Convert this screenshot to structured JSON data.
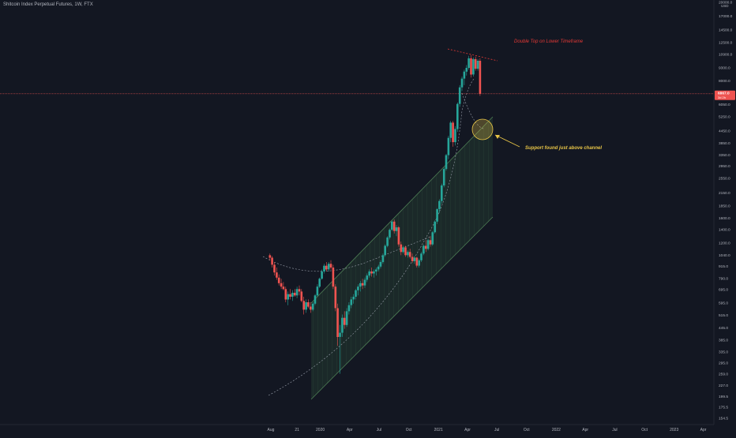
{
  "header": {
    "symbol": "Shitcoin Index Perpetual Futures, 1W, FTX"
  },
  "colors": {
    "background": "#131722",
    "up": "#26a69a",
    "down": "#ef5350",
    "axis_text": "#b2b5be",
    "channel": "#3d5a40",
    "annotation_red": "#e53935",
    "annotation_yellow": "#e8c547",
    "price_tag": "#ef5350"
  },
  "chart_data": {
    "type": "candlestick",
    "scale": "log",
    "ylim": [
      140,
      22000
    ],
    "currency_label": "USD",
    "y_ticks": [
      20000.0,
      17000.0,
      14500.0,
      12500.0,
      10900.0,
      9300.0,
      8000.0,
      6050.0,
      5250.0,
      4450.0,
      3850.0,
      3350.0,
      2950.0,
      2550.0,
      2150.0,
      1850.0,
      1600.0,
      1400.0,
      1200.0,
      1040.0,
      915.0,
      790.0,
      695.0,
      595.0,
      515.0,
      445.0,
      385.0,
      335.0,
      295.0,
      259.0,
      227.0,
      199.5,
      175.5,
      154.5
    ],
    "x_ticks": [
      {
        "label": "Aug",
        "date": "2019-08-01"
      },
      {
        "label": "21",
        "date": "2019-10-21"
      },
      {
        "label": "2020",
        "date": "2020-01-01"
      },
      {
        "label": "Apr",
        "date": "2020-04-01"
      },
      {
        "label": "Jul",
        "date": "2020-07-01"
      },
      {
        "label": "Oct",
        "date": "2020-10-01"
      },
      {
        "label": "2021",
        "date": "2021-01-01"
      },
      {
        "label": "Apr",
        "date": "2021-04-01"
      },
      {
        "label": "Jul",
        "date": "2021-07-01"
      },
      {
        "label": "Oct",
        "date": "2021-10-01"
      },
      {
        "label": "2022",
        "date": "2022-01-01"
      },
      {
        "label": "Apr",
        "date": "2022-04-01"
      },
      {
        "label": "Jul",
        "date": "2022-07-01"
      },
      {
        "label": "Oct",
        "date": "2022-10-01"
      },
      {
        "label": "2023",
        "date": "2023-01-01"
      },
      {
        "label": "Apr",
        "date": "2023-04-01"
      }
    ],
    "current_price": {
      "value": 6867.0,
      "label": "6867.0",
      "countdown": "3d 2h"
    },
    "candles": [
      {
        "date": "2019-07-29",
        "o": 1040,
        "h": 1060,
        "l": 980,
        "c": 1010
      },
      {
        "date": "2019-08-05",
        "o": 1010,
        "h": 1030,
        "l": 900,
        "c": 930
      },
      {
        "date": "2019-08-12",
        "o": 930,
        "h": 960,
        "l": 820,
        "c": 850
      },
      {
        "date": "2019-08-19",
        "o": 850,
        "h": 900,
        "l": 780,
        "c": 800
      },
      {
        "date": "2019-08-26",
        "o": 800,
        "h": 830,
        "l": 730,
        "c": 750
      },
      {
        "date": "2019-09-02",
        "o": 750,
        "h": 790,
        "l": 700,
        "c": 720
      },
      {
        "date": "2019-09-09",
        "o": 720,
        "h": 760,
        "l": 690,
        "c": 700
      },
      {
        "date": "2019-09-16",
        "o": 700,
        "h": 720,
        "l": 600,
        "c": 620
      },
      {
        "date": "2019-09-23",
        "o": 620,
        "h": 680,
        "l": 580,
        "c": 660
      },
      {
        "date": "2019-09-30",
        "o": 660,
        "h": 700,
        "l": 620,
        "c": 640
      },
      {
        "date": "2019-10-07",
        "o": 640,
        "h": 690,
        "l": 610,
        "c": 670
      },
      {
        "date": "2019-10-14",
        "o": 670,
        "h": 700,
        "l": 640,
        "c": 650
      },
      {
        "date": "2019-10-21",
        "o": 650,
        "h": 720,
        "l": 630,
        "c": 700
      },
      {
        "date": "2019-10-28",
        "o": 700,
        "h": 730,
        "l": 650,
        "c": 680
      },
      {
        "date": "2019-11-04",
        "o": 680,
        "h": 700,
        "l": 600,
        "c": 610
      },
      {
        "date": "2019-11-11",
        "o": 610,
        "h": 640,
        "l": 520,
        "c": 550
      },
      {
        "date": "2019-11-18",
        "o": 550,
        "h": 620,
        "l": 530,
        "c": 600
      },
      {
        "date": "2019-11-25",
        "o": 600,
        "h": 620,
        "l": 560,
        "c": 570
      },
      {
        "date": "2019-12-02",
        "o": 570,
        "h": 600,
        "l": 530,
        "c": 550
      },
      {
        "date": "2019-12-09",
        "o": 550,
        "h": 600,
        "l": 540,
        "c": 590
      },
      {
        "date": "2019-12-16",
        "o": 590,
        "h": 660,
        "l": 580,
        "c": 650
      },
      {
        "date": "2019-12-23",
        "o": 650,
        "h": 740,
        "l": 640,
        "c": 720
      },
      {
        "date": "2019-12-30",
        "o": 720,
        "h": 800,
        "l": 710,
        "c": 790
      },
      {
        "date": "2020-01-06",
        "o": 790,
        "h": 880,
        "l": 780,
        "c": 860
      },
      {
        "date": "2020-01-13",
        "o": 860,
        "h": 940,
        "l": 840,
        "c": 920
      },
      {
        "date": "2020-01-20",
        "o": 920,
        "h": 960,
        "l": 860,
        "c": 880
      },
      {
        "date": "2020-01-27",
        "o": 880,
        "h": 960,
        "l": 860,
        "c": 940
      },
      {
        "date": "2020-02-03",
        "o": 940,
        "h": 980,
        "l": 880,
        "c": 900
      },
      {
        "date": "2020-02-10",
        "o": 900,
        "h": 930,
        "l": 700,
        "c": 720
      },
      {
        "date": "2020-02-17",
        "o": 720,
        "h": 740,
        "l": 540,
        "c": 560
      },
      {
        "date": "2020-02-24",
        "o": 560,
        "h": 590,
        "l": 360,
        "c": 400
      },
      {
        "date": "2020-03-02",
        "o": 400,
        "h": 460,
        "l": 260,
        "c": 420
      },
      {
        "date": "2020-03-09",
        "o": 420,
        "h": 520,
        "l": 400,
        "c": 500
      },
      {
        "date": "2020-03-16",
        "o": 500,
        "h": 540,
        "l": 440,
        "c": 460
      },
      {
        "date": "2020-03-23",
        "o": 460,
        "h": 560,
        "l": 450,
        "c": 540
      },
      {
        "date": "2020-03-30",
        "o": 540,
        "h": 600,
        "l": 520,
        "c": 580
      },
      {
        "date": "2020-04-06",
        "o": 580,
        "h": 640,
        "l": 560,
        "c": 620
      },
      {
        "date": "2020-04-13",
        "o": 620,
        "h": 660,
        "l": 590,
        "c": 640
      },
      {
        "date": "2020-04-20",
        "o": 640,
        "h": 700,
        "l": 620,
        "c": 690
      },
      {
        "date": "2020-04-27",
        "o": 690,
        "h": 740,
        "l": 650,
        "c": 720
      },
      {
        "date": "2020-05-04",
        "o": 720,
        "h": 770,
        "l": 680,
        "c": 750
      },
      {
        "date": "2020-05-11",
        "o": 750,
        "h": 790,
        "l": 700,
        "c": 730
      },
      {
        "date": "2020-05-18",
        "o": 730,
        "h": 800,
        "l": 710,
        "c": 780
      },
      {
        "date": "2020-05-25",
        "o": 780,
        "h": 840,
        "l": 760,
        "c": 820
      },
      {
        "date": "2020-06-01",
        "o": 820,
        "h": 880,
        "l": 800,
        "c": 860
      },
      {
        "date": "2020-06-08",
        "o": 860,
        "h": 900,
        "l": 810,
        "c": 840
      },
      {
        "date": "2020-06-15",
        "o": 840,
        "h": 880,
        "l": 800,
        "c": 860
      },
      {
        "date": "2020-06-22",
        "o": 860,
        "h": 900,
        "l": 820,
        "c": 880
      },
      {
        "date": "2020-06-29",
        "o": 880,
        "h": 930,
        "l": 860,
        "c": 910
      },
      {
        "date": "2020-07-06",
        "o": 910,
        "h": 980,
        "l": 890,
        "c": 960
      },
      {
        "date": "2020-07-13",
        "o": 960,
        "h": 1060,
        "l": 940,
        "c": 1040
      },
      {
        "date": "2020-07-20",
        "o": 1040,
        "h": 1180,
        "l": 1020,
        "c": 1160
      },
      {
        "date": "2020-07-27",
        "o": 1160,
        "h": 1300,
        "l": 1140,
        "c": 1280
      },
      {
        "date": "2020-08-03",
        "o": 1280,
        "h": 1420,
        "l": 1250,
        "c": 1400
      },
      {
        "date": "2020-08-10",
        "o": 1400,
        "h": 1560,
        "l": 1380,
        "c": 1540
      },
      {
        "date": "2020-08-17",
        "o": 1540,
        "h": 1580,
        "l": 1340,
        "c": 1380
      },
      {
        "date": "2020-08-24",
        "o": 1380,
        "h": 1480,
        "l": 1300,
        "c": 1440
      },
      {
        "date": "2020-08-31",
        "o": 1440,
        "h": 1460,
        "l": 1150,
        "c": 1180
      },
      {
        "date": "2020-09-07",
        "o": 1180,
        "h": 1220,
        "l": 1040,
        "c": 1080
      },
      {
        "date": "2020-09-14",
        "o": 1080,
        "h": 1160,
        "l": 1060,
        "c": 1140
      },
      {
        "date": "2020-09-21",
        "o": 1140,
        "h": 1160,
        "l": 1020,
        "c": 1040
      },
      {
        "date": "2020-09-28",
        "o": 1040,
        "h": 1100,
        "l": 1010,
        "c": 1080
      },
      {
        "date": "2020-10-05",
        "o": 1080,
        "h": 1120,
        "l": 1000,
        "c": 1020
      },
      {
        "date": "2020-10-12",
        "o": 1020,
        "h": 1060,
        "l": 950,
        "c": 970
      },
      {
        "date": "2020-10-19",
        "o": 970,
        "h": 1030,
        "l": 940,
        "c": 1010
      },
      {
        "date": "2020-10-26",
        "o": 1010,
        "h": 1020,
        "l": 900,
        "c": 920
      },
      {
        "date": "2020-11-02",
        "o": 920,
        "h": 1000,
        "l": 900,
        "c": 980
      },
      {
        "date": "2020-11-09",
        "o": 980,
        "h": 1080,
        "l": 960,
        "c": 1060
      },
      {
        "date": "2020-11-16",
        "o": 1060,
        "h": 1180,
        "l": 1040,
        "c": 1160
      },
      {
        "date": "2020-11-23",
        "o": 1160,
        "h": 1240,
        "l": 1080,
        "c": 1120
      },
      {
        "date": "2020-11-30",
        "o": 1120,
        "h": 1260,
        "l": 1100,
        "c": 1240
      },
      {
        "date": "2020-12-07",
        "o": 1240,
        "h": 1300,
        "l": 1150,
        "c": 1180
      },
      {
        "date": "2020-12-14",
        "o": 1180,
        "h": 1380,
        "l": 1160,
        "c": 1360
      },
      {
        "date": "2020-12-21",
        "o": 1360,
        "h": 1560,
        "l": 1340,
        "c": 1540
      },
      {
        "date": "2020-12-28",
        "o": 1540,
        "h": 1800,
        "l": 1500,
        "c": 1780
      },
      {
        "date": "2021-01-04",
        "o": 1780,
        "h": 2000,
        "l": 1700,
        "c": 1960
      },
      {
        "date": "2021-01-11",
        "o": 1960,
        "h": 2400,
        "l": 1900,
        "c": 2350
      },
      {
        "date": "2021-01-18",
        "o": 2350,
        "h": 2900,
        "l": 2300,
        "c": 2850
      },
      {
        "date": "2021-01-25",
        "o": 2850,
        "h": 3400,
        "l": 2800,
        "c": 3350
      },
      {
        "date": "2021-02-01",
        "o": 3350,
        "h": 4200,
        "l": 3200,
        "c": 4100
      },
      {
        "date": "2021-02-08",
        "o": 4100,
        "h": 5000,
        "l": 3900,
        "c": 4900
      },
      {
        "date": "2021-02-15",
        "o": 4900,
        "h": 5000,
        "l": 3700,
        "c": 3900
      },
      {
        "date": "2021-02-22",
        "o": 3900,
        "h": 4700,
        "l": 3750,
        "c": 4550
      },
      {
        "date": "2021-03-01",
        "o": 4550,
        "h": 6200,
        "l": 4400,
        "c": 6100
      },
      {
        "date": "2021-03-08",
        "o": 6100,
        "h": 7600,
        "l": 5900,
        "c": 7400
      },
      {
        "date": "2021-03-15",
        "o": 7400,
        "h": 8400,
        "l": 7100,
        "c": 8200
      },
      {
        "date": "2021-03-22",
        "o": 8200,
        "h": 9100,
        "l": 7600,
        "c": 8900
      },
      {
        "date": "2021-03-29",
        "o": 8900,
        "h": 9600,
        "l": 8500,
        "c": 9300
      },
      {
        "date": "2021-04-05",
        "o": 9300,
        "h": 10700,
        "l": 9100,
        "c": 10400
      },
      {
        "date": "2021-04-12",
        "o": 10400,
        "h": 10800,
        "l": 8300,
        "c": 8600
      },
      {
        "date": "2021-04-19",
        "o": 8600,
        "h": 10500,
        "l": 8400,
        "c": 10300
      },
      {
        "date": "2021-04-26",
        "o": 10300,
        "h": 10600,
        "l": 9000,
        "c": 9200
      },
      {
        "date": "2021-05-03",
        "o": 9200,
        "h": 10300,
        "l": 9000,
        "c": 10100
      },
      {
        "date": "2021-05-10",
        "o": 10100,
        "h": 10400,
        "l": 6700,
        "c": 6867
      }
    ]
  },
  "annotations": {
    "double_top": "Double Top on Lower Timeframe",
    "support": "Support found just above channel"
  }
}
